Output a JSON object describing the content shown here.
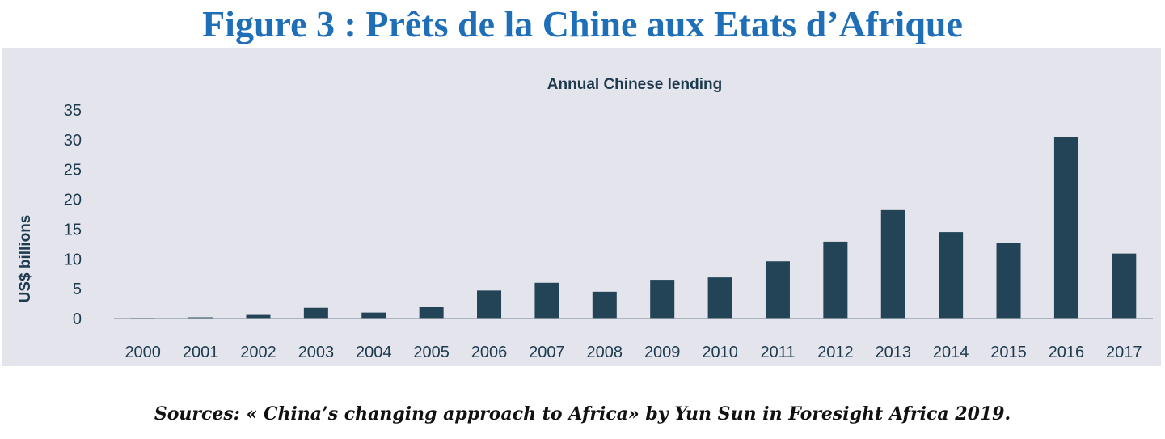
{
  "figure_title": "Figure 3 : Prêts de la Chine aux Etats d’Afrique",
  "source": "Sources: « China’s changing approach to Africa» by Yun Sun in Foresight Africa 2019.",
  "colors": {
    "title": "#1f6fb8",
    "bar": "#234357",
    "panel_background": "#e4e5ec",
    "text": "#1e3a4f"
  },
  "chart_data": {
    "type": "bar",
    "title": "Annual Chinese lending",
    "xlabel": "",
    "ylabel": "US$ billions",
    "categories": [
      "2000",
      "2001",
      "2002",
      "2003",
      "2004",
      "2005",
      "2006",
      "2007",
      "2008",
      "2009",
      "2010",
      "2011",
      "2012",
      "2013",
      "2014",
      "2015",
      "2016",
      "2017"
    ],
    "values": [
      0.1,
      0.2,
      0.6,
      1.8,
      1.0,
      1.9,
      4.7,
      6.0,
      4.5,
      6.5,
      6.9,
      9.6,
      12.9,
      18.2,
      14.5,
      12.7,
      30.4,
      10.9
    ],
    "ylim": [
      0,
      35
    ],
    "yticks": [
      "0",
      "5",
      "10",
      "15",
      "20",
      "25",
      "30",
      "35"
    ],
    "grid": false,
    "legend": "none"
  }
}
